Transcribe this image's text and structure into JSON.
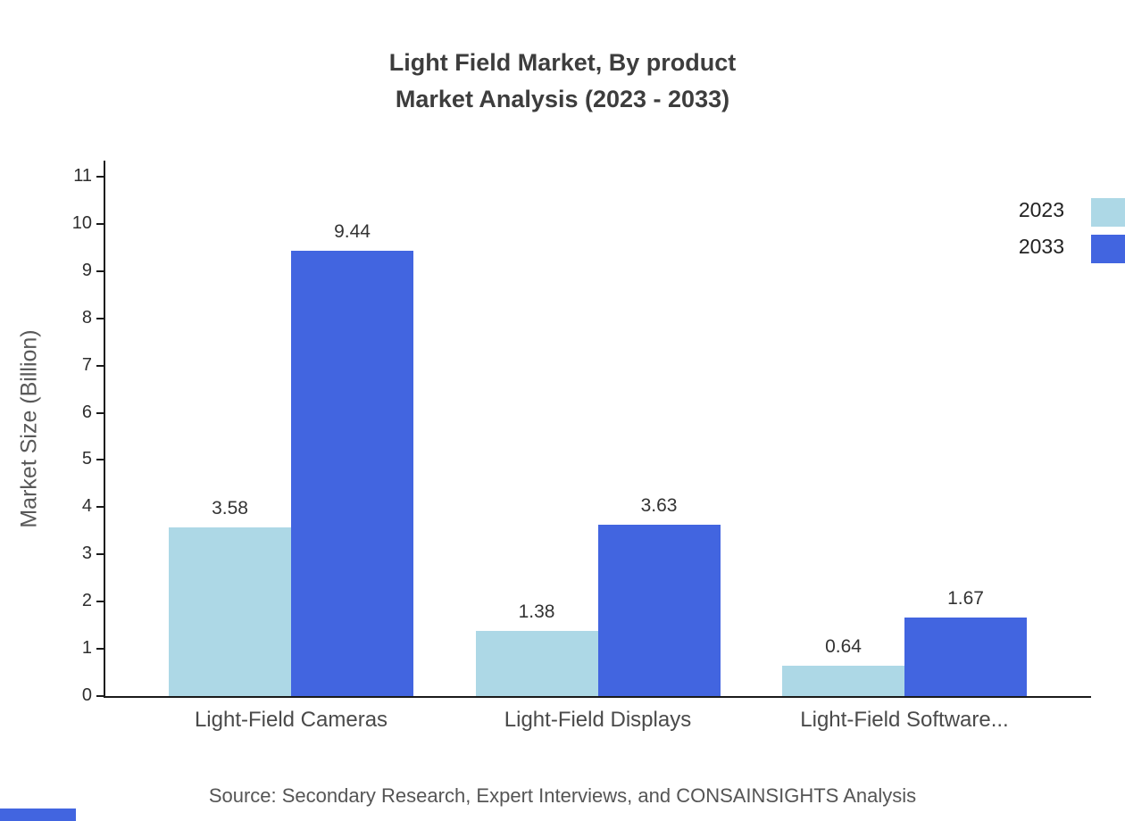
{
  "title": {
    "line1": "Light Field Market, By product",
    "line2": "Market Analysis (2023 - 2033)"
  },
  "source": "Source: Secondary Research, Expert Interviews, and CONSAINSIGHTS Analysis",
  "colors": {
    "series_2023": "#add8e6",
    "series_2033": "#4265e0",
    "axis": "#1a1a1a",
    "accent": "#4265e0"
  },
  "chart_data": {
    "type": "bar",
    "title": "Light Field Market, By product Market Analysis (2023 - 2033)",
    "categories": [
      "Light-Field Cameras",
      "Light-Field Displays",
      "Light-Field Software..."
    ],
    "series": [
      {
        "name": "2023",
        "color": "#add8e6",
        "values": [
          3.58,
          1.38,
          0.64
        ]
      },
      {
        "name": "2033",
        "color": "#4265e0",
        "values": [
          9.44,
          3.63,
          1.67
        ]
      }
    ],
    "xlabel": "",
    "ylabel": "Market Size (Billion)",
    "ylim": [
      0,
      11
    ],
    "ytick_step": 1,
    "yticks": [
      0,
      1,
      2,
      3,
      4,
      5,
      6,
      7,
      8,
      9,
      10,
      11
    ],
    "grid": false,
    "legend_position": "top-right",
    "value_labels_shown": true
  }
}
